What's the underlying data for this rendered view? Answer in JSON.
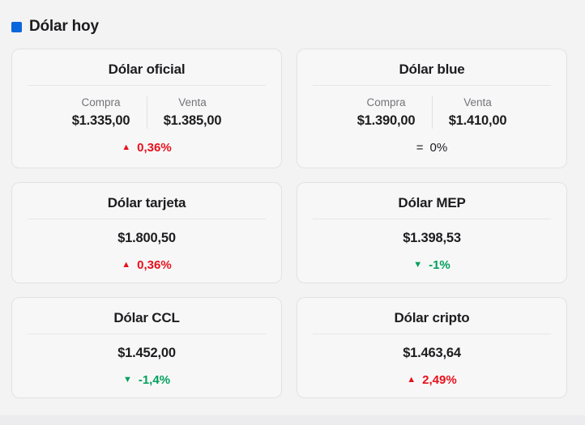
{
  "header": {
    "title": "Dólar hoy"
  },
  "labels": {
    "buy": "Compra",
    "sell": "Venta"
  },
  "colors": {
    "accent": "#0a66dd",
    "up": "#e8101b",
    "down": "#00a05c",
    "page_bg": "#f3f3f4"
  },
  "glyphs": {
    "up": {
      "char": "▲",
      "icon": "up-triangle-icon"
    },
    "down": {
      "char": "▼",
      "icon": "down-triangle-icon"
    },
    "neutral": {
      "char": "=",
      "icon": "equals-icon"
    }
  },
  "cards": [
    {
      "title": "Dólar oficial",
      "type": "buy_sell",
      "buy": "$1.335,00",
      "sell": "$1.385,00",
      "change": "0,36%",
      "direction": "up"
    },
    {
      "title": "Dólar blue",
      "type": "buy_sell",
      "buy": "$1.390,00",
      "sell": "$1.410,00",
      "change": "0%",
      "direction": "neutral"
    },
    {
      "title": "Dólar tarjeta",
      "type": "single",
      "value": "$1.800,50",
      "change": "0,36%",
      "direction": "up"
    },
    {
      "title": "Dólar MEP",
      "type": "single",
      "value": "$1.398,53",
      "change": "-1%",
      "direction": "down"
    },
    {
      "title": "Dólar CCL",
      "type": "single",
      "value": "$1.452,00",
      "change": "-1,4%",
      "direction": "down"
    },
    {
      "title": "Dólar cripto",
      "type": "single",
      "value": "$1.463,64",
      "change": "2,49%",
      "direction": "up"
    }
  ]
}
